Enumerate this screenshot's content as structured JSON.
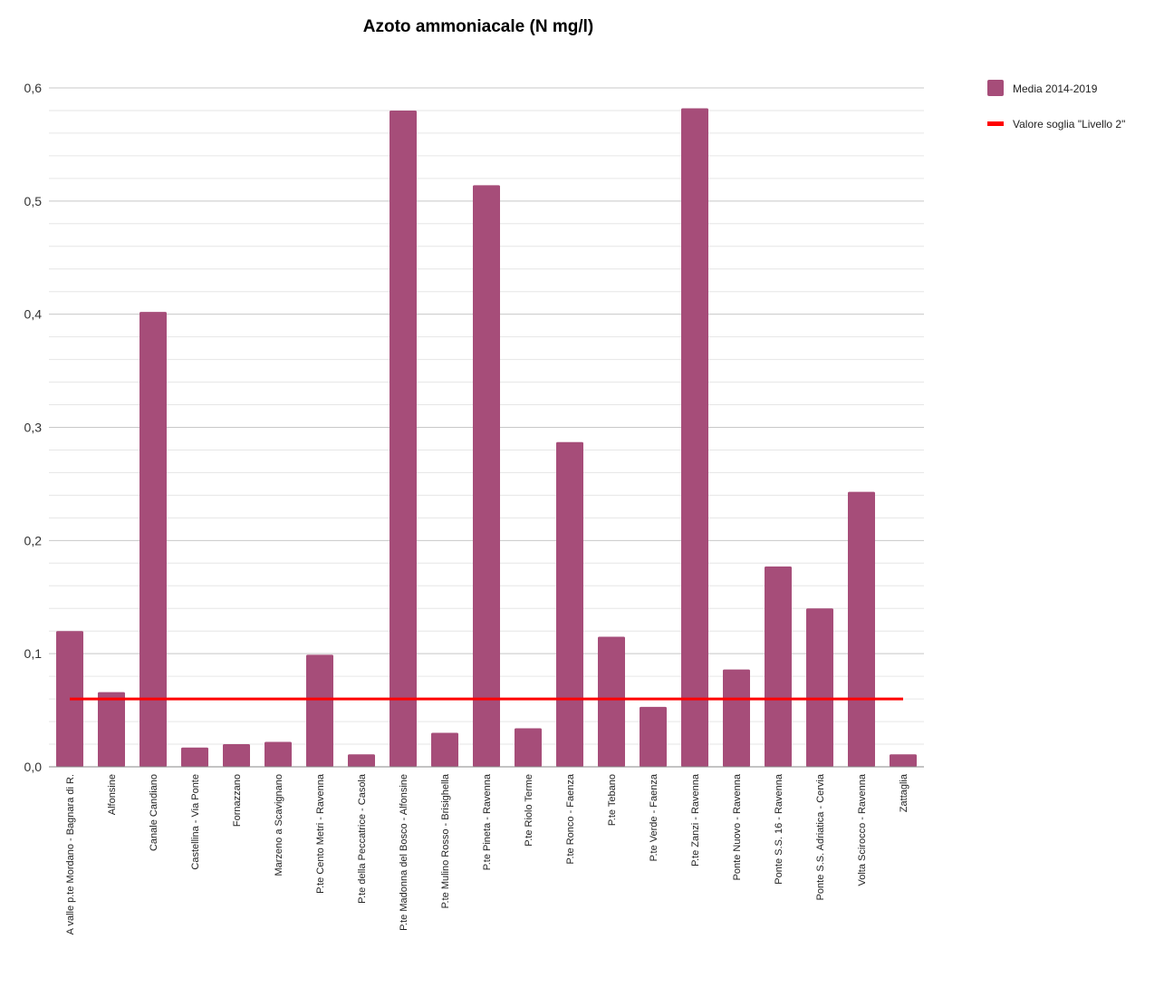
{
  "chart_data": {
    "type": "bar",
    "title": "Azoto ammoniacale (N mg/l)",
    "xlabel": "",
    "ylabel": "",
    "ylim": [
      0,
      0.6
    ],
    "yticks": [
      "0,0",
      "0,1",
      "0,2",
      "0,3",
      "0,4",
      "0,5",
      "0,6"
    ],
    "grid": true,
    "legend_position": "top-right",
    "categories": [
      "A valle p.te Mordano - Bagnara di R.",
      "Alfonsine",
      "Canale Candiano",
      "Castellina - Via Ponte",
      "Fornazzano",
      "Marzeno a Scavignano",
      "P.te Cento Metri - Ravenna",
      "P.te della Peccatrice - Casola",
      "P.te Madonna del Bosco - Alfonsine",
      "P.te Mulino Rosso - Brisighella",
      "P.te Pineta - Ravenna",
      "P.te Riolo Terme",
      "P.te Ronco - Faenza",
      "P.te Tebano",
      "P.te Verde - Faenza",
      "P.te Zanzi - Ravenna",
      "Ponte Nuovo - Ravenna",
      "Ponte S.S. 16 - Ravenna",
      "Ponte S.S. Adriatica - Cervia",
      "Volta Scirocco - Ravenna",
      "Zattaglia"
    ],
    "series": [
      {
        "name": "Media 2014-2019",
        "kind": "bar",
        "color": "#A64D79",
        "values": [
          0.12,
          0.066,
          0.402,
          0.017,
          0.02,
          0.022,
          0.099,
          0.011,
          0.58,
          0.03,
          0.514,
          0.034,
          0.287,
          0.115,
          0.053,
          0.582,
          0.086,
          0.177,
          0.14,
          0.243,
          0.011
        ]
      },
      {
        "name": "Valore soglia \"Livello 2\"",
        "kind": "line",
        "color": "#FF0000",
        "value": 0.06
      }
    ]
  }
}
